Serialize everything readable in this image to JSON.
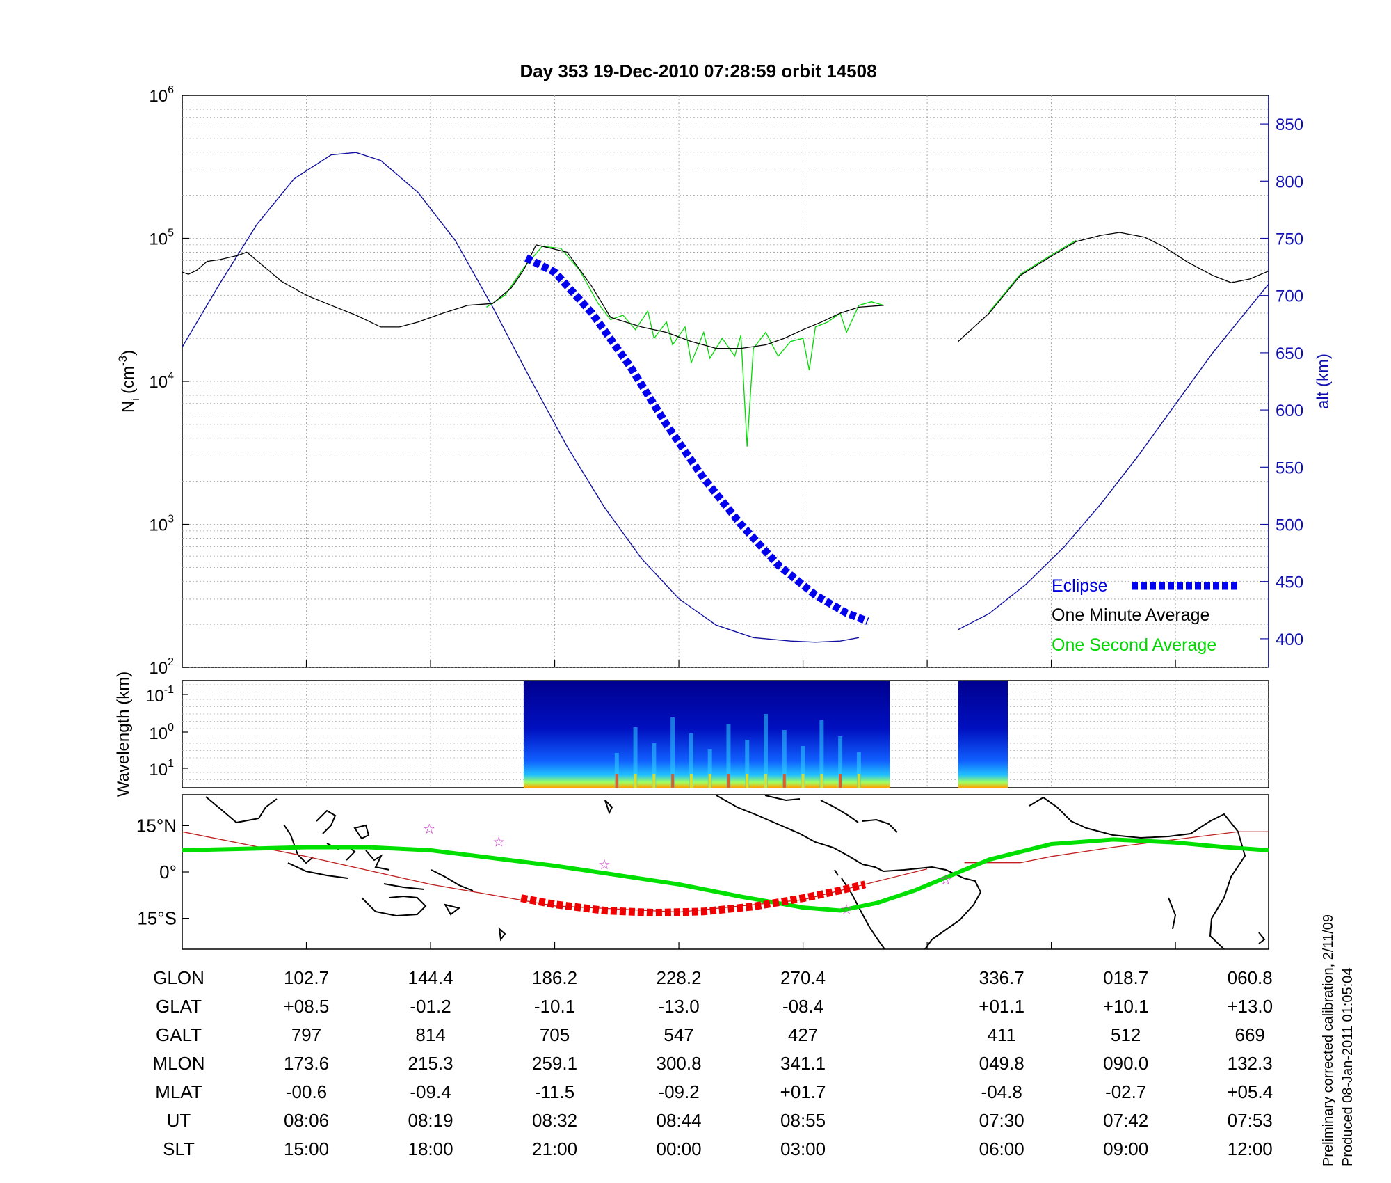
{
  "title": "Day 353  19-Dec-2010 07:28:59   orbit 14508",
  "colors": {
    "density_minute": "#000000",
    "density_second": "#00d800",
    "altitude": "#1010a0",
    "eclipse": "#0000ee",
    "track": "#00e000",
    "eclipse_track": "#ee0000",
    "orbit_line": "#c02020",
    "star": "#cc33cc"
  },
  "side_note": {
    "line1": "Preliminary corrected calibration, 2/11/09",
    "line2": "Produced 08-Jan-2011 01:05:04"
  },
  "chart_data": [
    {
      "type": "line",
      "name": "density-altitude-panel",
      "ylabel": "N_i (cm^-3)",
      "ylabel_main": "N",
      "ylabel_sub": "i",
      "ylabel_unit": "(cm",
      "ylabel_exp": "-3",
      "ylabel_close": ")",
      "y_log": true,
      "ylim": [
        100,
        1000000
      ],
      "left_ticks": [
        {
          "base": "10",
          "exp": "2"
        },
        {
          "base": "10",
          "exp": "3"
        },
        {
          "base": "10",
          "exp": "4"
        },
        {
          "base": "10",
          "exp": "5"
        },
        {
          "base": "10",
          "exp": "6"
        }
      ],
      "y2label": "alt (km)",
      "y2lim": [
        375,
        875
      ],
      "y2_ticks": [
        "400",
        "450",
        "500",
        "550",
        "600",
        "650",
        "700",
        "750",
        "800",
        "850"
      ],
      "legend": [
        {
          "label": "Eclipse",
          "color": "#0000ee"
        },
        {
          "label": "One Minute Average",
          "color": "#000000"
        },
        {
          "label": "One Second Average",
          "color": "#00d800"
        }
      ],
      "legend_position": "bottom-right",
      "density_minute_avg": [
        [
          0,
          58000
        ],
        [
          0.05,
          56000
        ],
        [
          0.12,
          60000
        ],
        [
          0.2,
          69000
        ],
        [
          0.3,
          71000
        ],
        [
          0.45,
          76000
        ],
        [
          0.52,
          80000
        ],
        [
          0.6,
          70000
        ],
        [
          0.8,
          50000
        ],
        [
          1.0,
          40000
        ],
        [
          1.2,
          34000
        ],
        [
          1.4,
          29000
        ],
        [
          1.6,
          24000
        ],
        [
          1.75,
          24000
        ],
        [
          1.9,
          26000
        ],
        [
          2.1,
          30000
        ],
        [
          2.3,
          34000
        ],
        [
          2.5,
          35000
        ],
        [
          2.65,
          45000
        ],
        [
          2.75,
          60000
        ],
        [
          2.85,
          90000
        ],
        [
          3.0,
          84000
        ],
        [
          3.1,
          80000
        ],
        [
          3.3,
          46000
        ],
        [
          3.45,
          28000
        ],
        [
          3.7,
          24000
        ],
        [
          3.9,
          22000
        ],
        [
          4.1,
          19000
        ],
        [
          4.3,
          17000
        ],
        [
          4.5,
          17000
        ],
        [
          4.7,
          18000
        ],
        [
          4.85,
          20000
        ],
        [
          5.0,
          23000
        ],
        [
          5.15,
          26000
        ],
        [
          5.3,
          30000
        ],
        [
          5.45,
          33000
        ],
        [
          5.65,
          34000
        ]
      ],
      "density_minute_avg_2": [
        [
          6.25,
          19000
        ],
        [
          6.5,
          30000
        ],
        [
          6.75,
          55000
        ],
        [
          7.0,
          75000
        ],
        [
          7.2,
          95000
        ],
        [
          7.4,
          105000
        ],
        [
          7.55,
          110000
        ],
        [
          7.75,
          102000
        ],
        [
          7.9,
          88000
        ],
        [
          8.1,
          68000
        ],
        [
          8.3,
          55000
        ],
        [
          8.45,
          49000
        ],
        [
          8.6,
          52000
        ],
        [
          8.75,
          59000
        ]
      ],
      "density_second_avg": [
        [
          2.45,
          33000
        ],
        [
          2.6,
          40000
        ],
        [
          2.75,
          62000
        ],
        [
          2.9,
          88000
        ],
        [
          3.05,
          85000
        ],
        [
          3.2,
          60000
        ],
        [
          3.35,
          35000
        ],
        [
          3.45,
          27000
        ],
        [
          3.55,
          29000
        ],
        [
          3.65,
          23000
        ],
        [
          3.75,
          31000
        ],
        [
          3.8,
          20000
        ],
        [
          3.9,
          26000
        ],
        [
          3.95,
          18000
        ],
        [
          4.05,
          24000
        ],
        [
          4.1,
          13500
        ],
        [
          4.2,
          22000
        ],
        [
          4.25,
          14500
        ],
        [
          4.35,
          20000
        ],
        [
          4.45,
          15000
        ],
        [
          4.5,
          21000
        ],
        [
          4.55,
          3500
        ],
        [
          4.6,
          17000
        ],
        [
          4.7,
          22000
        ],
        [
          4.8,
          15000
        ],
        [
          4.9,
          19000
        ],
        [
          5.0,
          20000
        ],
        [
          5.05,
          12000
        ],
        [
          5.1,
          24000
        ],
        [
          5.2,
          26000
        ],
        [
          5.3,
          30000
        ],
        [
          5.35,
          22000
        ],
        [
          5.45,
          34000
        ],
        [
          5.55,
          36000
        ],
        [
          5.65,
          34000
        ]
      ],
      "altitude_km": [
        [
          0,
          655
        ],
        [
          0.3,
          710
        ],
        [
          0.6,
          762
        ],
        [
          0.9,
          802
        ],
        [
          1.2,
          823
        ],
        [
          1.4,
          825
        ],
        [
          1.6,
          818
        ],
        [
          1.9,
          790
        ],
        [
          2.2,
          748
        ],
        [
          2.5,
          690
        ],
        [
          2.8,
          628
        ],
        [
          3.1,
          568
        ],
        [
          3.4,
          515
        ],
        [
          3.7,
          470
        ],
        [
          4.0,
          435
        ],
        [
          4.3,
          412
        ],
        [
          4.6,
          401
        ],
        [
          4.9,
          398
        ],
        [
          5.1,
          397
        ],
        [
          5.3,
          398
        ],
        [
          5.45,
          401
        ],
        [
          6.25,
          408
        ],
        [
          6.5,
          422
        ],
        [
          6.8,
          448
        ],
        [
          7.1,
          480
        ],
        [
          7.4,
          518
        ],
        [
          7.7,
          560
        ],
        [
          8.0,
          605
        ],
        [
          8.3,
          650
        ],
        [
          8.6,
          690
        ],
        [
          8.75,
          710
        ]
      ],
      "eclipse_density": [
        [
          2.77,
          73000
        ],
        [
          3.0,
          58000
        ],
        [
          3.3,
          30000
        ],
        [
          3.6,
          13000
        ],
        [
          3.9,
          5000
        ],
        [
          4.2,
          2100
        ],
        [
          4.5,
          1000
        ],
        [
          4.8,
          520
        ],
        [
          5.1,
          320
        ],
        [
          5.35,
          240
        ],
        [
          5.52,
          210
        ]
      ]
    },
    {
      "type": "heatmap",
      "name": "spectrogram-panel",
      "ylabel": "Wavelength (km)",
      "y_ticks": [
        {
          "base": "10",
          "exp": "-1"
        },
        {
          "base": "10",
          "exp": "0"
        },
        {
          "base": "10",
          "exp": "1"
        }
      ],
      "data_spans": [
        [
          2.75,
          5.7
        ],
        [
          6.25,
          6.65
        ]
      ],
      "colormap": "jet"
    },
    {
      "type": "line",
      "name": "ground-track-panel",
      "y_ticks": [
        "15°N",
        "0°",
        "15°S"
      ],
      "ylim": [
        -25,
        25
      ],
      "track_lat": [
        [
          0,
          7
        ],
        [
          0.5,
          7.5
        ],
        [
          1.0,
          8
        ],
        [
          1.5,
          8
        ],
        [
          2.0,
          7
        ],
        [
          2.5,
          4.5
        ],
        [
          3.0,
          2
        ],
        [
          3.5,
          -1
        ],
        [
          4.0,
          -4
        ],
        [
          4.5,
          -8
        ],
        [
          5.0,
          -11.5
        ],
        [
          5.3,
          -12.5
        ],
        [
          5.6,
          -10
        ],
        [
          5.9,
          -6
        ],
        [
          6.2,
          -1
        ],
        [
          6.5,
          4
        ],
        [
          7.0,
          9
        ],
        [
          7.5,
          10.5
        ],
        [
          8.0,
          9.5
        ],
        [
          8.4,
          8
        ],
        [
          8.75,
          7
        ]
      ],
      "eclipse_track": [
        [
          2.73,
          -8.5
        ],
        [
          3.0,
          -10.5
        ],
        [
          3.4,
          -12.5
        ],
        [
          3.8,
          -13.2
        ],
        [
          4.2,
          -12.8
        ],
        [
          4.6,
          -11.2
        ],
        [
          5.0,
          -8.5
        ],
        [
          5.3,
          -6
        ],
        [
          5.5,
          -4
        ]
      ],
      "orbit_line": [
        [
          0,
          13
        ],
        [
          1.0,
          5
        ],
        [
          2.0,
          -4
        ],
        [
          3.0,
          -11
        ],
        [
          4.0,
          -13
        ],
        [
          5.0,
          -9
        ],
        [
          5.6,
          -3
        ],
        [
          6.0,
          1
        ],
        [
          6.3,
          3
        ],
        [
          6.75,
          3
        ],
        [
          7.0,
          5
        ],
        [
          7.5,
          8
        ],
        [
          8.0,
          10.5
        ],
        [
          8.5,
          13
        ],
        [
          8.75,
          13
        ]
      ],
      "stars": [
        [
          1.99,
          14
        ],
        [
          2.55,
          9.8
        ],
        [
          3.4,
          2.5
        ],
        [
          5.35,
          -12
        ],
        [
          6.15,
          -2.5
        ]
      ]
    }
  ],
  "table": {
    "row_labels": [
      "GLON",
      "GLAT",
      "GALT",
      "MLON",
      "MLAT",
      "UT",
      "SLT"
    ],
    "columns": [
      {
        "x": 1,
        "values": [
          "102.7",
          "+08.5",
          "797",
          "173.6",
          "-00.6",
          "08:06",
          "15:00"
        ]
      },
      {
        "x": 2,
        "values": [
          "144.4",
          "-01.2",
          "814",
          "215.3",
          "-09.4",
          "08:19",
          "18:00"
        ]
      },
      {
        "x": 3,
        "values": [
          "186.2",
          "-10.1",
          "705",
          "259.1",
          "-11.5",
          "08:32",
          "21:00"
        ]
      },
      {
        "x": 4,
        "values": [
          "228.2",
          "-13.0",
          "547",
          "300.8",
          "-09.2",
          "08:44",
          "00:00"
        ]
      },
      {
        "x": 5,
        "values": [
          "270.4",
          "-08.4",
          "427",
          "341.1",
          "+01.7",
          "08:55",
          "03:00"
        ]
      },
      {
        "x": 6.6,
        "values": [
          "336.7",
          "+01.1",
          "411",
          "049.8",
          "-04.8",
          "07:30",
          "06:00"
        ]
      },
      {
        "x": 7.6,
        "values": [
          "018.7",
          "+10.1",
          "512",
          "090.0",
          "-02.7",
          "07:42",
          "09:00"
        ]
      },
      {
        "x": 8.6,
        "values": [
          "060.8",
          "+13.0",
          "669",
          "132.3",
          "+05.4",
          "07:53",
          "12:00"
        ]
      }
    ]
  }
}
